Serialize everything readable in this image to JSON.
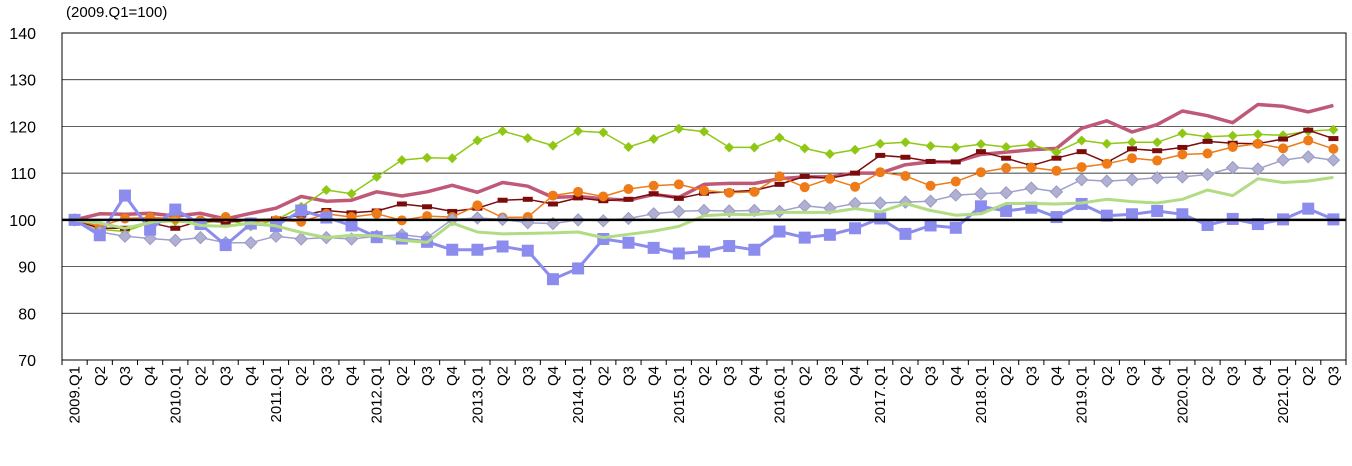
{
  "chart_data": {
    "type": "line",
    "unit_label": "(2009.Q1=100)",
    "ylim": [
      70,
      140
    ],
    "yticks": [
      "70",
      "80",
      "90",
      "100",
      "110",
      "120",
      "130",
      "140"
    ],
    "grid": true,
    "legend": "none",
    "reference_line_y": 100,
    "categories": [
      "2009.Q1",
      "Q2",
      "Q3",
      "Q4",
      "2010.Q1",
      "Q2",
      "Q3",
      "Q4",
      "2011.Q1",
      "Q2",
      "Q3",
      "Q4",
      "2012.Q1",
      "Q2",
      "Q3",
      "Q4",
      "2013.Q1",
      "Q2",
      "Q3",
      "Q4",
      "2014.Q1",
      "Q2",
      "Q3",
      "Q4",
      "2015.Q1",
      "Q2",
      "Q3",
      "Q4",
      "2016.Q1",
      "Q2",
      "Q3",
      "Q4",
      "2017.Q1",
      "Q2",
      "Q3",
      "Q4",
      "2018.Q1",
      "Q2",
      "Q3",
      "Q4",
      "2019.Q1",
      "Q2",
      "Q3",
      "Q4",
      "2020.Q1",
      "Q2",
      "Q3",
      "Q4",
      "2021.Q1",
      "Q2",
      "Q3"
    ],
    "series": [
      {
        "color": "#C05878",
        "marker": "none",
        "width": 3.5,
        "values": [
          100,
          101.3,
          101.2,
          101.4,
          100.8,
          101.4,
          100.2,
          101.4,
          102.5,
          105,
          104,
          104.2,
          106,
          105.1,
          106,
          107.4,
          105.9,
          108,
          107.2,
          104.8,
          105,
          104.5,
          104.2,
          105.4,
          104.8,
          107.6,
          107.8,
          107.8,
          108.8,
          109.2,
          109.2,
          110,
          110,
          111.8,
          112.4,
          112.4,
          114,
          114.5,
          115,
          115.3,
          119.6,
          121.2,
          118.8,
          120.4,
          123.3,
          122.3,
          120.8,
          124.7,
          124.3,
          123.1,
          124.5
        ]
      },
      {
        "color": "#8FC814",
        "marker": "diamond",
        "width": 1.5,
        "values": [
          100,
          98,
          97.5,
          99.4,
          99.7,
          99.1,
          100.2,
          98.6,
          100,
          102.8,
          106.4,
          105.6,
          109.2,
          112.8,
          113.3,
          113.2,
          117,
          119,
          117.5,
          115.9,
          119,
          118.7,
          115.6,
          117.3,
          119.5,
          118.9,
          115.5,
          115.5,
          117.6,
          115.3,
          114.1,
          115,
          116.3,
          116.6,
          115.8,
          115.5,
          116.2,
          115.6,
          116.1,
          114.5,
          117,
          116.3,
          116.6,
          116.6,
          118.5,
          117.8,
          118,
          118.3,
          118.1,
          119,
          119.3
        ]
      },
      {
        "color": "#7B0C0C",
        "marker": "dash",
        "width": 1.5,
        "values": [
          100,
          98.2,
          98.2,
          99.4,
          98.2,
          99.8,
          99.5,
          99.9,
          100.2,
          101,
          102,
          101.5,
          101.9,
          103.4,
          102.8,
          101.8,
          102.5,
          104.2,
          104.4,
          103.4,
          104.7,
          104.1,
          104.4,
          105.6,
          104.6,
          105.7,
          106,
          106.3,
          107.6,
          109.3,
          108.9,
          110,
          113.8,
          113.4,
          112.5,
          112.4,
          114.6,
          113.2,
          111.6,
          113.2,
          114.6,
          112.3,
          115.2,
          114.8,
          115.5,
          116.8,
          116.4,
          116.3,
          117.3,
          119.2,
          117.4
        ]
      },
      {
        "color": "#EE7A18",
        "marker": "circle",
        "width": 1.5,
        "values": [
          100,
          98.6,
          100.3,
          100.5,
          100.3,
          99.9,
          100.6,
          99.5,
          99.9,
          99.6,
          101.3,
          100.6,
          101.3,
          99.9,
          100.8,
          100.6,
          103.1,
          100.5,
          100.6,
          105.2,
          106,
          105,
          106.6,
          107.3,
          107.6,
          106.3,
          105.8,
          106,
          109.3,
          107,
          108.8,
          107.1,
          110.2,
          109.4,
          107.3,
          108.2,
          110.2,
          111.1,
          111.2,
          110.5,
          111.3,
          112,
          113.2,
          112.7,
          114,
          114.2,
          115.6,
          116.3,
          115.3,
          117,
          115.2
        ]
      },
      {
        "color": "#A0A0CC",
        "marker": "diamond-gray",
        "width": 1.5,
        "values": [
          100,
          97.4,
          96.5,
          96,
          95.6,
          96.2,
          95.1,
          95.1,
          96.5,
          95.9,
          96.2,
          95.9,
          96.5,
          96.8,
          96.2,
          100.1,
          100.4,
          100.1,
          99.4,
          99.2,
          100,
          99.8,
          100.3,
          101.3,
          101.8,
          102,
          101.9,
          102,
          101.8,
          103,
          102.5,
          103.5,
          103.6,
          103.8,
          104,
          105.3,
          105.6,
          105.8,
          106.8,
          106,
          108.6,
          108.3,
          108.6,
          109,
          109.2,
          109.7,
          111.2,
          110.9,
          112.8,
          113.5,
          112.8
        ]
      },
      {
        "color": "#8C8CEE",
        "marker": "square",
        "width": 3.0,
        "values": [
          100,
          96.7,
          105.2,
          97.9,
          102.2,
          99.1,
          94.6,
          99.2,
          98.7,
          102,
          100.5,
          98.8,
          96.3,
          96,
          95.3,
          93.6,
          93.6,
          94.3,
          93.4,
          87.3,
          89.6,
          95.9,
          95.1,
          94,
          92.8,
          93.2,
          94.4,
          93.6,
          97.5,
          96.2,
          96.8,
          98.2,
          100.3,
          97,
          98.8,
          98.3,
          102.9,
          101.9,
          102.6,
          100.6,
          103.4,
          100.9,
          101.2,
          101.9,
          101.2,
          98.9,
          100.2,
          99.1,
          100.1,
          102.4,
          100.1
        ]
      },
      {
        "color": "#B2DC84",
        "marker": "none",
        "width": 3.0,
        "values": [
          100,
          99.3,
          98.2,
          99.4,
          100.2,
          98.8,
          98.6,
          99.3,
          98.7,
          97.3,
          96.2,
          96.7,
          96.6,
          95.6,
          95.2,
          99.3,
          97.4,
          97,
          97.1,
          97.2,
          97.4,
          96.2,
          96.9,
          97.6,
          98.6,
          100.9,
          101.2,
          101.1,
          101.6,
          101.6,
          101.6,
          102.4,
          101.7,
          103.5,
          102,
          101,
          101.3,
          103.5,
          103.5,
          103.4,
          103.6,
          104.4,
          103.9,
          103.6,
          104.4,
          106.4,
          105.2,
          108.8,
          108,
          108.3,
          109.1
        ]
      }
    ]
  }
}
